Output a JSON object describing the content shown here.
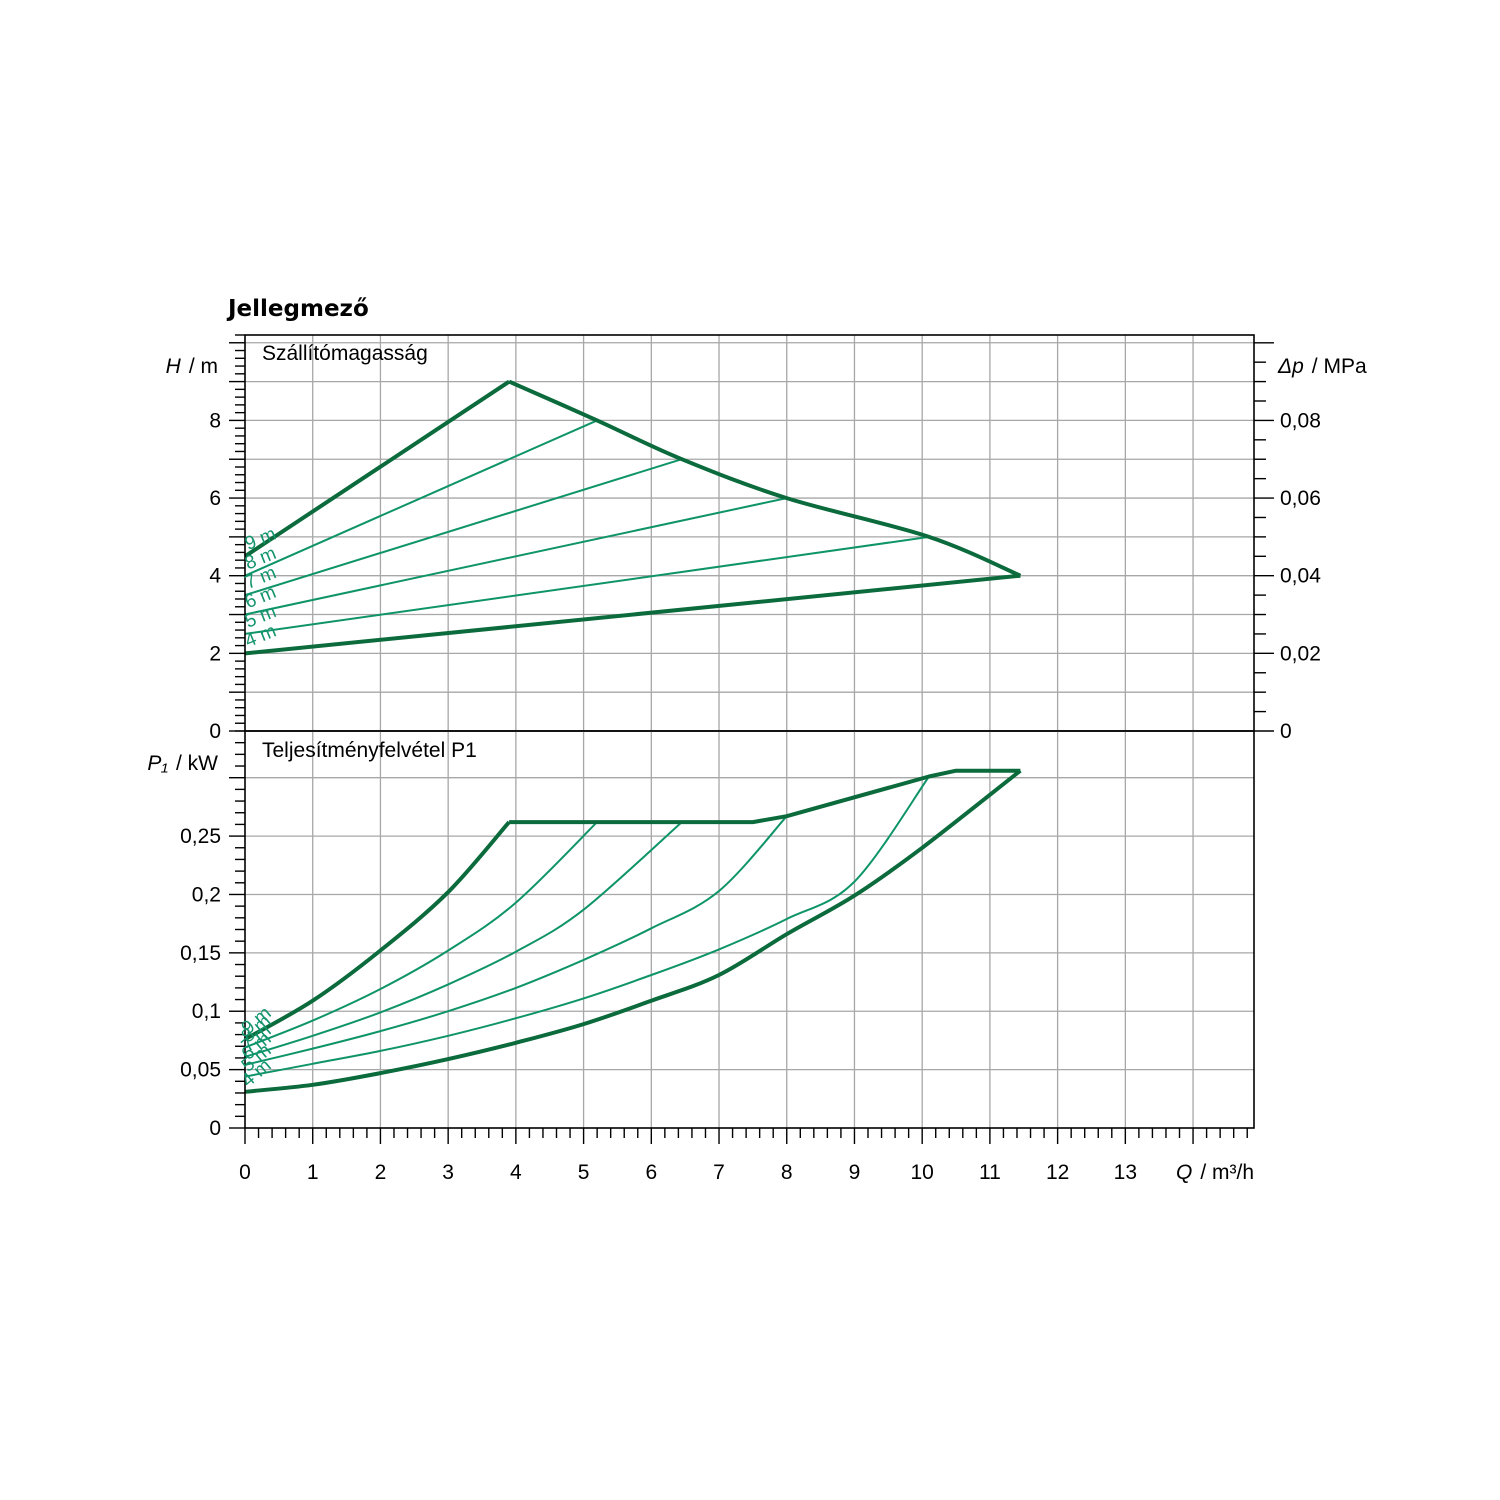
{
  "chart_data": [
    {
      "type": "line",
      "title": "Jellegmező",
      "subtitle": "Szállítómagasság",
      "ylabel_var": "H",
      "ylabel_unit": "/ m",
      "y2label_var": "Δp",
      "y2label_unit": "/ MPa",
      "xlim": [
        0,
        14.9
      ],
      "ylim": [
        0,
        10.2
      ],
      "y2lim": [
        0,
        0.102
      ],
      "grid": true,
      "ytick_labels": [
        "0",
        "2",
        "4",
        "6",
        "8"
      ],
      "y2tick_labels": [
        "0",
        "0,02",
        "0,04",
        "0,06",
        "0,08"
      ],
      "series": [
        {
          "name": "9 m",
          "x": [
            0,
            3.9
          ],
          "y": [
            4.5,
            9.0
          ]
        },
        {
          "name": "8 m",
          "x": [
            0,
            5.2
          ],
          "y": [
            4.0,
            8.0
          ]
        },
        {
          "name": "7 m",
          "x": [
            0,
            6.45
          ],
          "y": [
            3.5,
            7.0
          ]
        },
        {
          "name": "6 m",
          "x": [
            0,
            8.0
          ],
          "y": [
            3.0,
            6.0
          ]
        },
        {
          "name": "5 m",
          "x": [
            0,
            10.1
          ],
          "y": [
            2.5,
            5.0
          ]
        },
        {
          "name": "4 m",
          "x": [
            0,
            11.45
          ],
          "y": [
            2.0,
            4.0
          ]
        }
      ],
      "max_curve": {
        "x": [
          3.9,
          5.2,
          6.45,
          8.0,
          10.1,
          11.45
        ],
        "y": [
          9.0,
          8.0,
          7.0,
          6.0,
          5.0,
          4.0
        ]
      }
    },
    {
      "type": "line",
      "subtitle": "Teljesítményfelvétel P1",
      "ylabel_var": "P₁",
      "ylabel_unit": "/ kW",
      "xlabel_var": "Q",
      "xlabel_unit": "/ m³/h",
      "xlim": [
        0,
        14.9
      ],
      "ylim": [
        0,
        0.34
      ],
      "grid": true,
      "xtick_labels": [
        "0",
        "1",
        "2",
        "3",
        "4",
        "5",
        "6",
        "7",
        "8",
        "9",
        "10",
        "11",
        "12",
        "13"
      ],
      "ytick_labels": [
        "0",
        "0,05",
        "0,1",
        "0,15",
        "0,2",
        "0,25"
      ],
      "series": [
        {
          "name": "9 m",
          "x": [
            0,
            1,
            2,
            3,
            3.9
          ],
          "y": [
            0.076,
            0.109,
            0.152,
            0.202,
            0.262
          ]
        },
        {
          "name": "8 m",
          "x": [
            0,
            1,
            2,
            3,
            4,
            5.2
          ],
          "y": [
            0.069,
            0.092,
            0.119,
            0.152,
            0.193,
            0.262
          ]
        },
        {
          "name": "7 m",
          "x": [
            0,
            1,
            2,
            3,
            4,
            5,
            6.45
          ],
          "y": [
            0.061,
            0.079,
            0.099,
            0.123,
            0.151,
            0.187,
            0.262
          ]
        },
        {
          "name": "6 m",
          "x": [
            0,
            1,
            2,
            3,
            4,
            5,
            6,
            7,
            8.0
          ],
          "y": [
            0.054,
            0.068,
            0.083,
            0.1,
            0.12,
            0.144,
            0.171,
            0.203,
            0.267
          ]
        },
        {
          "name": "5 m",
          "x": [
            0,
            1,
            2,
            3,
            4,
            5,
            6,
            7,
            8,
            9,
            10.1
          ],
          "y": [
            0.044,
            0.055,
            0.066,
            0.079,
            0.094,
            0.111,
            0.131,
            0.153,
            0.179,
            0.211,
            0.301
          ]
        },
        {
          "name": "4 m",
          "x": [
            0,
            1,
            2,
            3,
            4,
            5,
            6,
            7,
            8,
            9,
            10,
            11.45
          ],
          "y": [
            0.031,
            0.037,
            0.047,
            0.059,
            0.073,
            0.089,
            0.109,
            0.131,
            0.166,
            0.199,
            0.24,
            0.306
          ]
        }
      ],
      "max_curve": {
        "x": [
          3.9,
          7.5,
          8.0,
          10.1,
          10.5,
          11.45
        ],
        "y": [
          0.262,
          0.262,
          0.267,
          0.301,
          0.306,
          0.306
        ]
      }
    }
  ]
}
